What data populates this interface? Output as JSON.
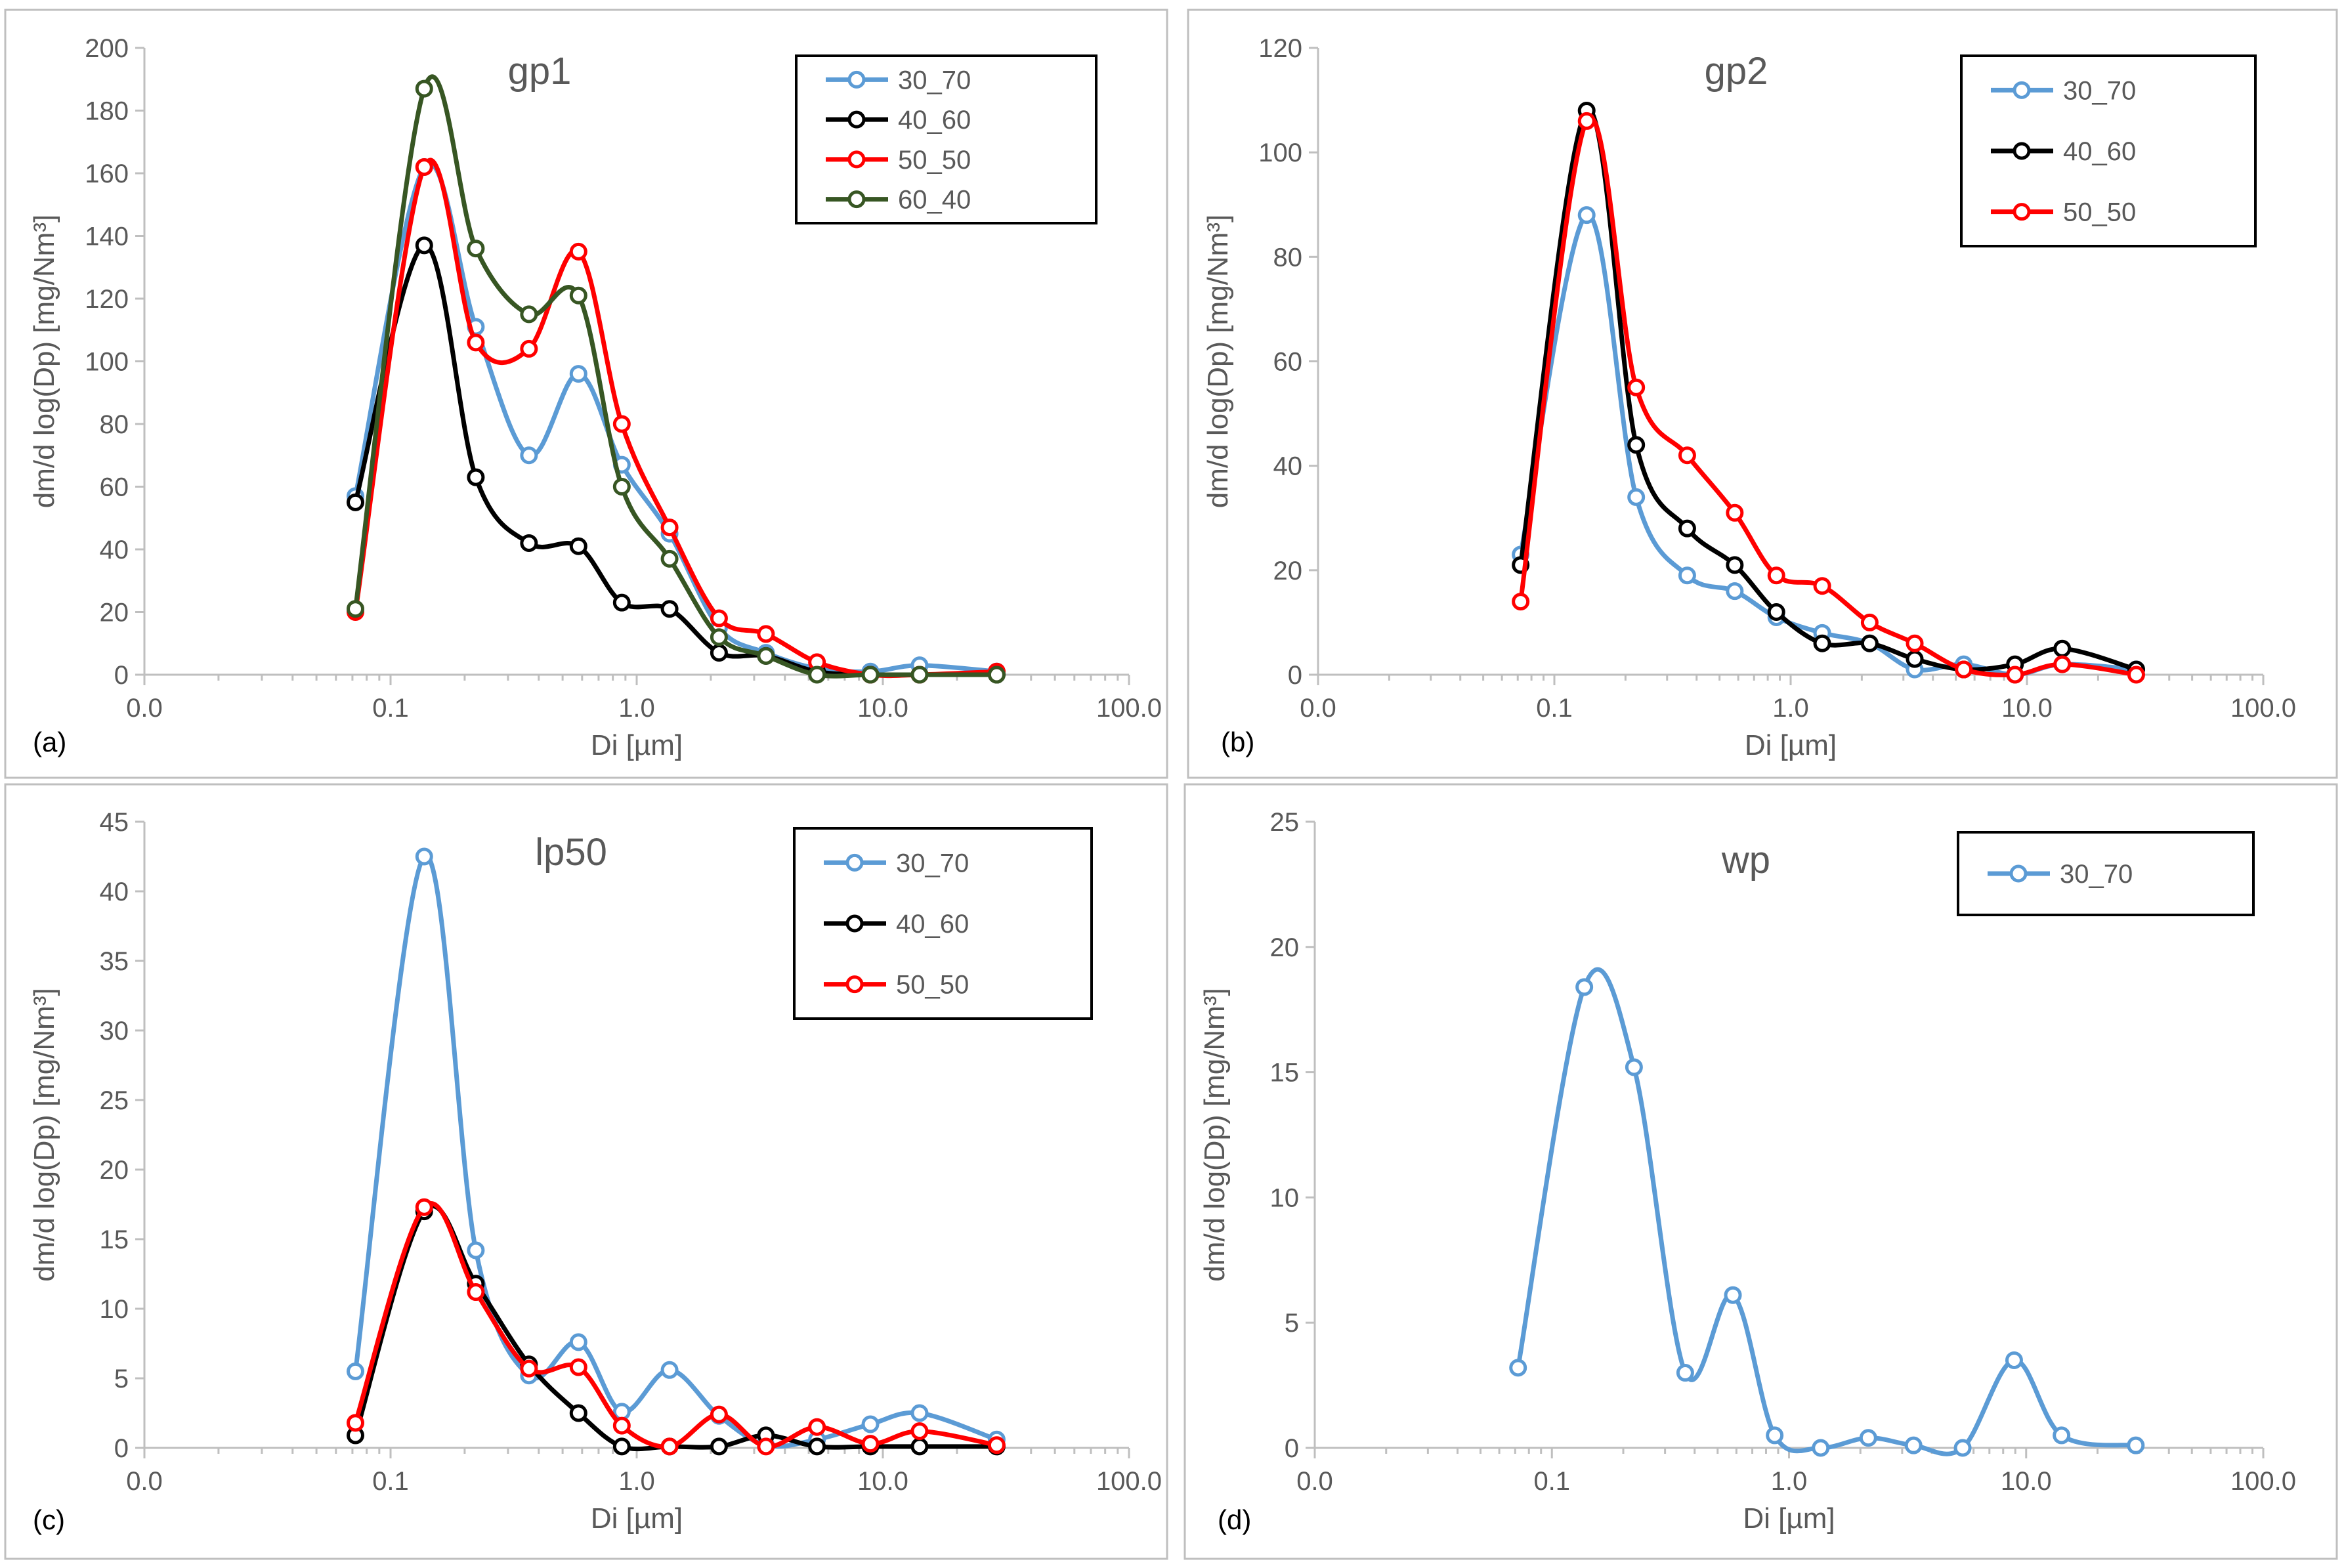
{
  "chart_data": [
    {
      "type": "line",
      "panel_label": "(a)",
      "title": "gp1",
      "xlabel": "Di [µm]",
      "ylabel": "dm/d log(Dp) [mg/Nm³]",
      "xscale": "log",
      "xlim": [
        0.01,
        100
      ],
      "ylim": [
        0,
        200
      ],
      "ystep": 20,
      "xtick_values": [
        0.01,
        0.1,
        1,
        10,
        100
      ],
      "xtick_labels": [
        "0.0",
        "0.1",
        "1.0",
        "10.0",
        "100.0"
      ],
      "legend_position": "top-right",
      "x": [
        0.072,
        0.137,
        0.222,
        0.365,
        0.58,
        0.87,
        1.36,
        2.16,
        3.35,
        5.4,
        8.9,
        14.1,
        29
      ],
      "series": [
        {
          "name": "30_70",
          "color": "#5b9bd5",
          "values": [
            57,
            162,
            111,
            70,
            96,
            67,
            45,
            15,
            7,
            2,
            1,
            3,
            1
          ]
        },
        {
          "name": "40_60",
          "color": "#000000",
          "values": [
            55,
            137,
            63,
            42,
            41,
            23,
            21,
            7,
            6,
            1,
            0,
            0,
            0
          ]
        },
        {
          "name": "50_50",
          "color": "#ff0000",
          "values": [
            20,
            162,
            106,
            104,
            135,
            80,
            47,
            18,
            13,
            4,
            0,
            0,
            1
          ]
        },
        {
          "name": "60_40",
          "color": "#375623",
          "values": [
            21,
            187,
            136,
            115,
            121,
            60,
            37,
            12,
            6,
            0,
            0,
            0,
            0
          ]
        }
      ]
    },
    {
      "type": "line",
      "panel_label": "(b)",
      "title": "gp2",
      "xlabel": "Di [µm]",
      "ylabel": "dm/d log(Dp) [mg/Nm³]",
      "xscale": "log",
      "xlim": [
        0.01,
        100
      ],
      "ylim": [
        0,
        120
      ],
      "ystep": 20,
      "xtick_values": [
        0.01,
        0.1,
        1,
        10,
        100
      ],
      "xtick_labels": [
        "0.0",
        "0.1",
        "1.0",
        "10.0",
        "100.0"
      ],
      "legend_position": "top-right",
      "x": [
        0.072,
        0.137,
        0.222,
        0.365,
        0.58,
        0.87,
        1.36,
        2.16,
        3.35,
        5.4,
        8.9,
        14.1,
        29
      ],
      "series": [
        {
          "name": "30_70",
          "color": "#5b9bd5",
          "values": [
            23,
            88,
            34,
            19,
            16,
            11,
            8,
            6,
            1,
            2,
            0,
            2,
            1
          ]
        },
        {
          "name": "40_60",
          "color": "#000000",
          "values": [
            21,
            108,
            44,
            28,
            21,
            12,
            6,
            6,
            3,
            1,
            2,
            5,
            1
          ]
        },
        {
          "name": "50_50",
          "color": "#ff0000",
          "values": [
            14,
            106,
            55,
            42,
            31,
            19,
            17,
            10,
            6,
            1,
            0,
            2,
            0
          ]
        }
      ]
    },
    {
      "type": "line",
      "panel_label": "(c)",
      "title": "lp50",
      "xlabel": "Di [µm]",
      "ylabel": "dm/d log(Dp) [mg/Nm³]",
      "xscale": "log",
      "xlim": [
        0.01,
        100
      ],
      "ylim": [
        0,
        45
      ],
      "ystep": 5,
      "xtick_values": [
        0.01,
        0.1,
        1,
        10,
        100
      ],
      "xtick_labels": [
        "0.0",
        "0.1",
        "1.0",
        "10.0",
        "100.0"
      ],
      "legend_position": "top-right",
      "x": [
        0.072,
        0.137,
        0.222,
        0.365,
        0.58,
        0.87,
        1.36,
        2.16,
        3.35,
        5.4,
        8.9,
        14.1,
        29
      ],
      "series": [
        {
          "name": "30_70",
          "color": "#5b9bd5",
          "values": [
            5.5,
            42.5,
            14.2,
            5.2,
            7.6,
            2.6,
            5.6,
            2.3,
            0.2,
            0.6,
            1.7,
            2.5,
            0.6
          ]
        },
        {
          "name": "40_60",
          "color": "#000000",
          "values": [
            0.9,
            17.0,
            11.8,
            6.0,
            2.5,
            0.1,
            0.1,
            0.1,
            0.9,
            0.1,
            0.1,
            0.1,
            0.1
          ]
        },
        {
          "name": "50_50",
          "color": "#ff0000",
          "values": [
            1.8,
            17.3,
            11.2,
            5.7,
            5.8,
            1.6,
            0.1,
            2.4,
            0.1,
            1.5,
            0.3,
            1.2,
            0.2
          ]
        }
      ]
    },
    {
      "type": "line",
      "panel_label": "(d)",
      "title": "wp",
      "xlabel": "Di [µm]",
      "ylabel": "dm/d log(Dp) [mg/Nm³]",
      "xscale": "log",
      "xlim": [
        0.01,
        100
      ],
      "ylim": [
        0,
        25
      ],
      "ystep": 5,
      "xtick_values": [
        0.01,
        0.1,
        1,
        10,
        100
      ],
      "xtick_labels": [
        "0.0",
        "0.1",
        "1.0",
        "10.0",
        "100.0"
      ],
      "legend_position": "top-right",
      "x": [
        0.072,
        0.137,
        0.222,
        0.365,
        0.58,
        0.87,
        1.36,
        2.16,
        3.35,
        5.4,
        8.9,
        14.1,
        29
      ],
      "series": [
        {
          "name": "30_70",
          "color": "#5b9bd5",
          "values": [
            3.2,
            18.4,
            15.2,
            3.0,
            6.1,
            0.5,
            0.0,
            0.4,
            0.1,
            0.0,
            3.5,
            0.5,
            0.1
          ]
        }
      ]
    }
  ]
}
